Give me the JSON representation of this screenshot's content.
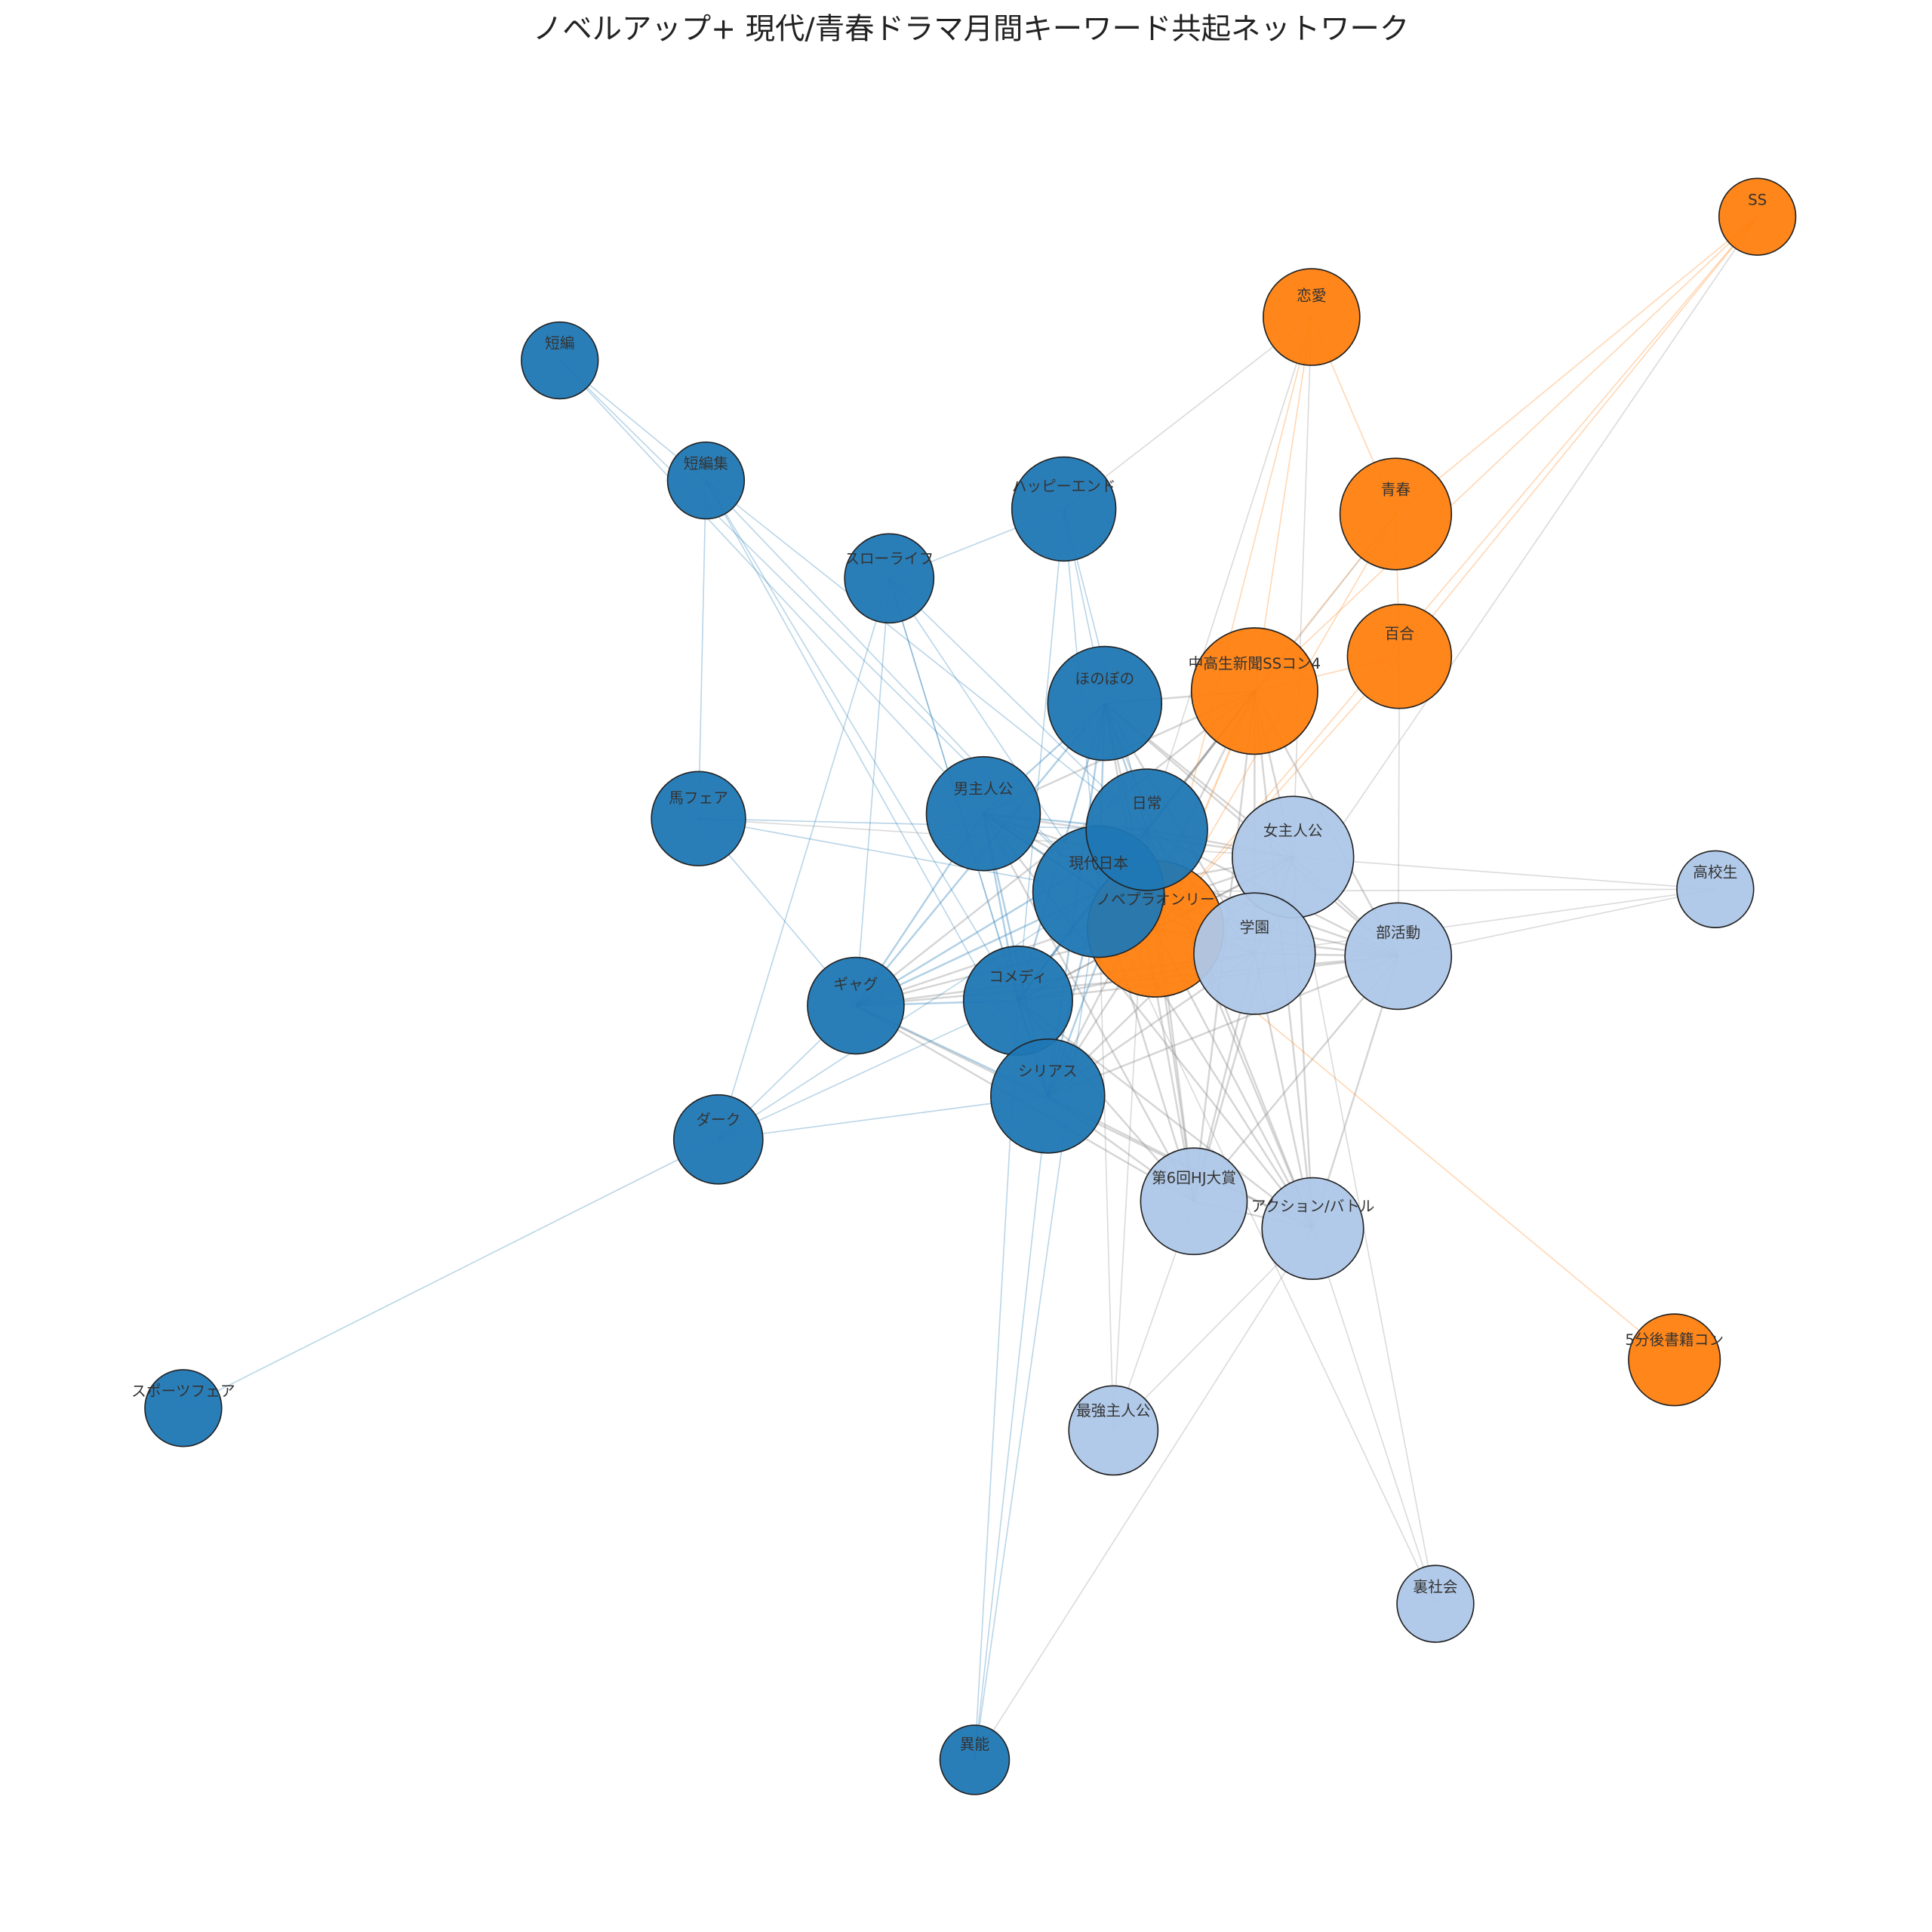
{
  "title": "ノベルアップ+ 現代/青春ドラマ月間キーワード共起ネットワーク",
  "nodes": [
    {
      "label": "SS",
      "color": "#ff7f0e"
    },
    {
      "label": "恋愛",
      "color": "#ff7f0e"
    },
    {
      "label": "青春",
      "color": "#ff7f0e"
    },
    {
      "label": "百合",
      "color": "#ff7f0e"
    },
    {
      "label": "中高生新聞SSコン4",
      "color": "#ff7f0e"
    },
    {
      "label": "ノベプラオンリー",
      "color": "#ff7f0e"
    },
    {
      "label": "5分後書籍コン",
      "color": "#ff7f0e"
    },
    {
      "label": "短編",
      "color": "#1f77b4"
    },
    {
      "label": "短編集",
      "color": "#1f77b4"
    },
    {
      "label": "ハッピーエンド",
      "color": "#1f77b4"
    },
    {
      "label": "スローライフ",
      "color": "#1f77b4"
    },
    {
      "label": "ほのぼの",
      "color": "#1f77b4"
    },
    {
      "label": "馬フェア",
      "color": "#1f77b4"
    },
    {
      "label": "男主人公",
      "color": "#1f77b4"
    },
    {
      "label": "日常",
      "color": "#1f77b4"
    },
    {
      "label": "現代日本",
      "color": "#1f77b4"
    },
    {
      "label": "コメディ",
      "color": "#1f77b4"
    },
    {
      "label": "ギャグ",
      "color": "#1f77b4"
    },
    {
      "label": "シリアス",
      "color": "#1f77b4"
    },
    {
      "label": "ダーク",
      "color": "#1f77b4"
    },
    {
      "label": "スポーツフェア",
      "color": "#1f77b4"
    },
    {
      "label": "異能",
      "color": "#1f77b4"
    },
    {
      "label": "女主人公",
      "color": "#aec7e8"
    },
    {
      "label": "学園",
      "color": "#aec7e8"
    },
    {
      "label": "部活動",
      "color": "#aec7e8"
    },
    {
      "label": "高校生",
      "color": "#aec7e8"
    },
    {
      "label": "第6回HJ大賞",
      "color": "#aec7e8"
    },
    {
      "label": "アクション/バトル",
      "color": "#aec7e8"
    },
    {
      "label": "最強主人公",
      "color": "#aec7e8"
    },
    {
      "label": "裏社会",
      "color": "#aec7e8"
    }
  ]
}
